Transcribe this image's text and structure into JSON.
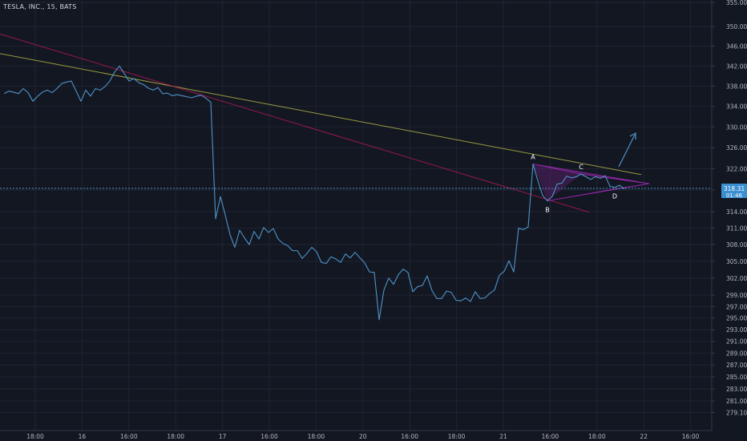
{
  "header": {
    "title": "TESLA, INC., 15, BATS"
  },
  "price_tag": {
    "price": "318.31",
    "countdown": "01:46"
  },
  "chart_data": {
    "type": "line",
    "title": "TESLA, INC., 15, BATS",
    "xlabel": "",
    "ylabel": "",
    "ylim": [
      277.6,
      355.0
    ],
    "y_scale": "log",
    "grid": true,
    "y_ticks": [
      355.0,
      350.0,
      346.0,
      342.0,
      338.0,
      334.0,
      330.0,
      326.0,
      322.0,
      318.0,
      314.0,
      311.0,
      308.0,
      305.0,
      302.0,
      299.0,
      297.0,
      295.0,
      293.0,
      291.0,
      289.0,
      287.0,
      285.0,
      283.0,
      281.0,
      279.1
    ],
    "x_ticks": [
      "18:00",
      "16",
      "16:00",
      "18:00",
      "17",
      "16:00",
      "18:00",
      "20",
      "16:00",
      "18:00",
      "21",
      "16:00",
      "18:00",
      "22",
      "16:00"
    ],
    "series": [
      {
        "name": "",
        "color": "#4f93c8",
        "values": [
          336.5,
          337.0,
          336.8,
          336.5,
          337.5,
          336.7,
          335.0,
          336.0,
          336.8,
          337.2,
          336.7,
          337.5,
          338.5,
          338.8,
          339.0,
          337.0,
          335.0,
          337.2,
          336.0,
          337.5,
          337.2,
          337.9,
          339.0,
          340.8,
          342.0,
          340.5,
          339.0,
          339.5,
          338.7,
          338.3,
          337.6,
          337.2,
          337.7,
          336.5,
          336.6,
          336.1,
          336.3,
          336.1,
          335.9,
          335.7,
          336.0,
          336.2,
          335.6,
          334.8,
          312.7,
          316.8,
          313.4,
          309.8,
          307.5,
          310.6,
          309.2,
          308.0,
          310.4,
          309.0,
          311.1,
          310.2,
          310.9,
          309.0,
          308.2,
          307.8,
          306.9,
          306.9,
          305.5,
          306.4,
          307.5,
          306.7,
          304.8,
          304.6,
          305.8,
          305.4,
          304.8,
          306.3,
          305.6,
          306.6,
          305.6,
          304.7,
          303.1,
          303.0,
          294.7,
          299.9,
          302.0,
          300.9,
          302.6,
          303.6,
          303.0,
          299.6,
          300.5,
          300.7,
          302.4,
          299.8,
          298.4,
          298.4,
          299.7,
          299.5,
          298.1,
          298.0,
          298.5,
          297.9,
          299.6,
          298.4,
          298.5,
          299.3,
          299.9,
          302.5,
          303.2,
          305.1,
          303.1,
          311.0,
          310.7,
          311.2,
          322.9,
          319.8,
          317.0,
          316.0,
          316.8,
          319.1,
          319.3,
          320.6,
          320.3,
          320.5,
          321.0,
          320.5,
          320.0,
          320.5,
          320.2,
          320.7,
          318.7,
          318.5,
          318.9,
          318.2
        ]
      }
    ],
    "pattern": {
      "color": "#9c27b0",
      "points": [
        {
          "label": "A",
          "value": 322.9
        },
        {
          "label": "B",
          "value": 316.0
        },
        {
          "label": "C",
          "value": 321.0
        },
        {
          "label": "D",
          "value": 318.2
        }
      ]
    },
    "trendlines": [
      {
        "name": "",
        "color": "#c5c548",
        "from": 344.5,
        "to": 320.9
      },
      {
        "name": "",
        "color": "#c2185b",
        "from": 348.5,
        "to": 313.9
      }
    ],
    "last_price": 318.31
  }
}
